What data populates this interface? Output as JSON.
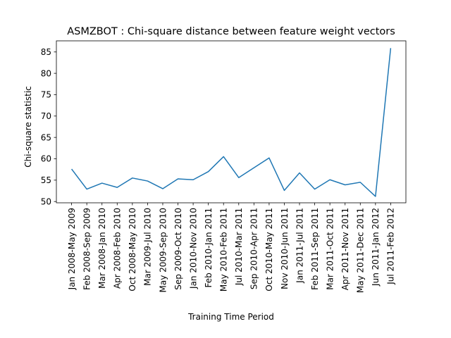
{
  "chart_data": {
    "type": "line",
    "title": "ASMZBOT : Chi-square distance between feature weight vectors",
    "xlabel": "Training Time Period",
    "ylabel": "Chi-square statistic",
    "ylim": [
      49.7,
      87.6
    ],
    "yticks": [
      50,
      55,
      60,
      65,
      70,
      75,
      80,
      85
    ],
    "grid": false,
    "categories": [
      "Jan 2008-May 2009",
      "Feb 2008-Sep 2009",
      "Mar 2008-Jan 2010",
      "Apr 2008-Feb 2010",
      "Oct 2008-May 2010",
      "Mar 2009-Jul 2010",
      "May 2009-Sep 2010",
      "Sep 2009-Oct 2010",
      "Jan 2010-Nov 2010",
      "Feb 2010-Jan 2011",
      "May 2010-Feb 2011",
      "Jul 2010-Mar 2011",
      "Sep 2010-Apr 2011",
      "Oct 2010-May 2011",
      "Nov 2010-Jun 2011",
      "Jan 2011-Jul 2011",
      "Feb 2011-Sep 2011",
      "Mar 2011-Oct 2011",
      "Apr 2011-Nov 2011",
      "May 2011-Dec 2011",
      "Jun 2011-Jan 2012",
      "Jul 2011-Feb 2012"
    ],
    "series": [
      {
        "name": "",
        "color": "#1f77b4",
        "values": [
          57.6,
          52.9,
          54.3,
          53.3,
          55.5,
          54.8,
          53.0,
          55.3,
          55.1,
          57.0,
          60.5,
          55.6,
          57.9,
          60.2,
          52.6,
          56.7,
          52.9,
          55.1,
          53.9,
          54.5,
          51.2,
          85.9
        ]
      }
    ]
  }
}
